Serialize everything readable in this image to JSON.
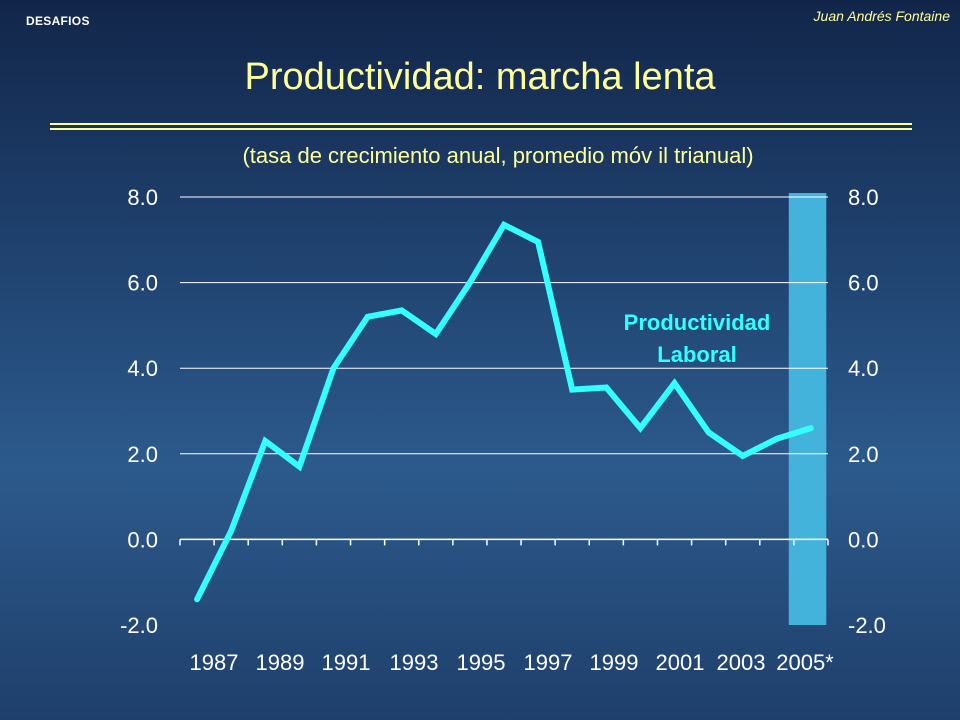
{
  "header": {
    "brand": "DESAFIOS",
    "author": "Juan Andrés Fontaine",
    "title": "Productividad: marcha lenta"
  },
  "colors": {
    "accent_text": "#ffff99",
    "line": "#33ffff",
    "label": "#33ffff",
    "bar": "#44b3dc",
    "grid": "#ffffff"
  },
  "chart_data": {
    "type": "line",
    "title": "Productividad: marcha lenta",
    "subtitle": "(tasa de crecimiento anual, promedio móv il trianual)",
    "xlabel": "",
    "ylabel": "",
    "ylim": [
      -2.0,
      8.0
    ],
    "yticks": [
      "8.0",
      "6.0",
      "4.0",
      "2.0",
      "0.0",
      "-2.0"
    ],
    "ytick_values": [
      8,
      6,
      4,
      2,
      0,
      -2
    ],
    "right_axis_ticks": [
      "8.0",
      "6.0",
      "4.0",
      "2.0",
      "0.0",
      "-2.0"
    ],
    "xtick_labels": [
      "1987",
      "1989",
      "1991",
      "1993",
      "1995",
      "1997",
      "1999",
      "2001",
      "2003",
      "2005*"
    ],
    "x": [
      1987,
      1988,
      1989,
      1990,
      1991,
      1992,
      1993,
      1994,
      1995,
      1996,
      1997,
      1998,
      1999,
      2000,
      2001,
      2002,
      2003,
      2004,
      2005
    ],
    "series": [
      {
        "values": [
          -1.4,
          0.2,
          2.3,
          1.7,
          4.0,
          5.2,
          5.35,
          4.8,
          6.0,
          7.35,
          6.95,
          3.5,
          3.55,
          2.6,
          3.65,
          2.5,
          1.95,
          2.35,
          2.6
        ]
      }
    ],
    "shaded_band": {
      "x_start": 2004.35,
      "x_end": 2005.45,
      "y_min": -2.0,
      "y_max": 8.0
    },
    "annotation": {
      "text_line1": "Productividad",
      "text_line2": "Laboral"
    },
    "grid": true,
    "legend": "none"
  }
}
